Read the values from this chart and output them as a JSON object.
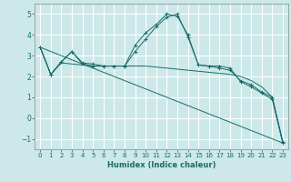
{
  "xlabel": "Humidex (Indice chaleur)",
  "background_color": "#cce8e8",
  "grid_color": "#ffffff",
  "line_color": "#1a6b6b",
  "xlim": [
    -0.5,
    23.5
  ],
  "ylim": [
    -1.5,
    5.5
  ],
  "yticks": [
    -1,
    0,
    1,
    2,
    3,
    4,
    5
  ],
  "xticks": [
    0,
    1,
    2,
    3,
    4,
    5,
    6,
    7,
    8,
    9,
    10,
    11,
    12,
    13,
    14,
    15,
    16,
    17,
    18,
    19,
    20,
    21,
    22,
    23
  ],
  "tick_fontsize": 5.0,
  "xlabel_fontsize": 6.0,
  "series": [
    {
      "x": [
        0,
        1,
        2,
        3,
        4,
        5,
        6,
        7,
        8,
        9,
        10,
        11,
        12,
        13,
        14,
        15,
        16,
        17,
        18,
        19,
        20,
        21,
        22,
        23
      ],
      "y": [
        3.4,
        2.1,
        2.7,
        3.2,
        2.65,
        2.6,
        2.5,
        2.5,
        2.5,
        3.5,
        4.1,
        4.5,
        5.0,
        4.9,
        4.0,
        2.55,
        2.5,
        2.5,
        2.4,
        1.75,
        1.5,
        1.2,
        0.9,
        -1.2
      ],
      "marker": "+"
    },
    {
      "x": [
        0,
        1,
        2,
        3,
        4,
        5,
        6,
        7,
        8,
        9,
        10,
        11,
        12,
        13,
        14,
        15,
        16,
        17,
        18,
        19,
        20,
        21,
        22,
        23
      ],
      "y": [
        3.4,
        2.1,
        2.7,
        3.2,
        2.6,
        2.5,
        2.5,
        2.5,
        2.5,
        3.2,
        3.8,
        4.4,
        4.85,
        5.0,
        3.9,
        2.55,
        2.5,
        2.4,
        2.3,
        1.8,
        1.6,
        1.25,
        1.0,
        -1.15
      ],
      "marker": "+"
    },
    {
      "x": [
        0,
        1,
        2,
        3,
        4,
        5,
        6,
        7,
        8,
        9,
        10,
        11,
        12,
        13,
        14,
        15,
        16,
        17,
        18,
        19,
        20,
        21,
        22,
        23
      ],
      "y": [
        3.4,
        2.1,
        2.65,
        2.6,
        2.55,
        2.5,
        2.5,
        2.5,
        2.5,
        2.5,
        2.5,
        2.45,
        2.4,
        2.35,
        2.3,
        2.25,
        2.2,
        2.15,
        2.1,
        2.0,
        1.8,
        1.5,
        1.0,
        -1.2
      ],
      "marker": null
    },
    {
      "x": [
        0,
        23
      ],
      "y": [
        3.4,
        -1.2
      ],
      "marker": null
    }
  ]
}
